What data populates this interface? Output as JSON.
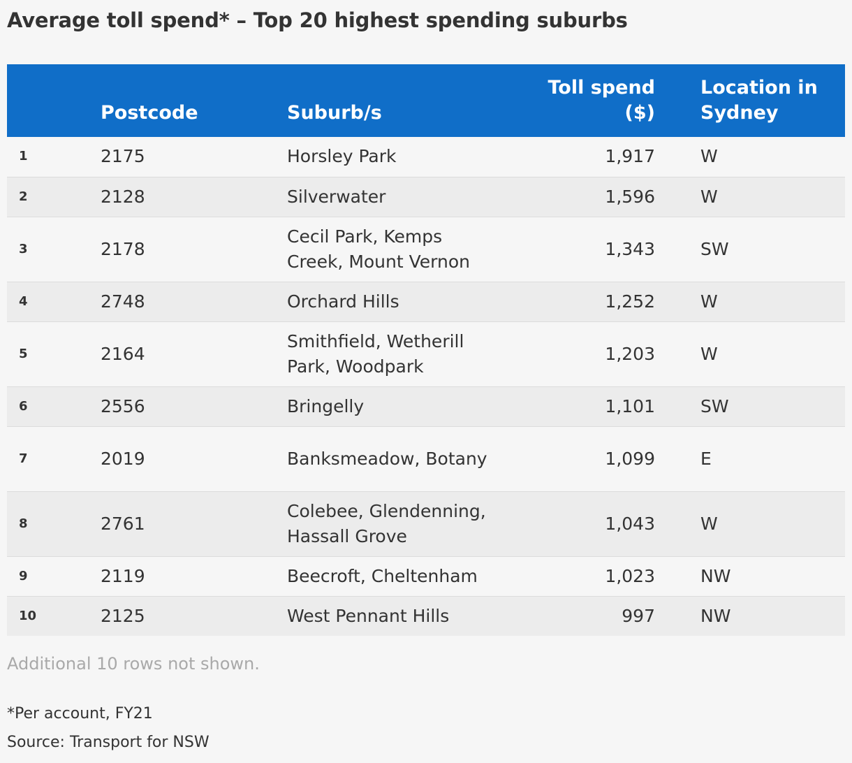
{
  "chart_data": {
    "type": "table",
    "title": "Average toll spend* – Top 20 highest spending suburbs",
    "columns": [
      "",
      "Postcode",
      "Suburb/s",
      "Toll spend ($)",
      "",
      "Location in Sydney"
    ],
    "header": {
      "rank": "",
      "postcode": "Postcode",
      "suburb": "Suburb/s",
      "spend_line1": "Toll spend",
      "spend_line2": "($)",
      "location_line1": "Location in",
      "location_line2": "Sydney"
    },
    "rows": [
      {
        "rank": "1",
        "postcode": "2175",
        "suburb": "Horsley Park",
        "spend": "1,917",
        "location": "W"
      },
      {
        "rank": "2",
        "postcode": "2128",
        "suburb": "Silverwater",
        "spend": "1,596",
        "location": "W"
      },
      {
        "rank": "3",
        "postcode": "2178",
        "suburb": "Cecil Park, Kemps Creek, Mount Vernon",
        "spend": "1,343",
        "location": "SW"
      },
      {
        "rank": "4",
        "postcode": "2748",
        "suburb": "Orchard Hills",
        "spend": "1,252",
        "location": "W"
      },
      {
        "rank": "5",
        "postcode": "2164",
        "suburb": "Smithfield, Wetherill Park, Woodpark",
        "spend": "1,203",
        "location": "W"
      },
      {
        "rank": "6",
        "postcode": "2556",
        "suburb": "Bringelly",
        "spend": "1,101",
        "location": "SW"
      },
      {
        "rank": "7",
        "postcode": "2019",
        "suburb": "Banksmeadow, Botany",
        "spend": "1,099",
        "location": "E"
      },
      {
        "rank": "8",
        "postcode": "2761",
        "suburb": "Colebee, Glendenning, Hassall Grove",
        "spend": "1,043",
        "location": "W"
      },
      {
        "rank": "9",
        "postcode": "2119",
        "suburb": "Beecroft, Cheltenham",
        "spend": "1,023",
        "location": "NW"
      },
      {
        "rank": "10",
        "postcode": "2125",
        "suburb": "West Pennant Hills",
        "spend": "997",
        "location": "NW"
      }
    ],
    "more_rows_note": "Additional 10 rows not shown.",
    "footnote": "*Per account, FY21",
    "source": "Source: Transport for NSW"
  },
  "colors": {
    "header_background": "#106ec8",
    "header_text": "#ffffff",
    "row_alt_background": "#ececec",
    "page_background": "#f6f6f6",
    "text": "#333333",
    "muted_text": "#a9a9a9"
  }
}
